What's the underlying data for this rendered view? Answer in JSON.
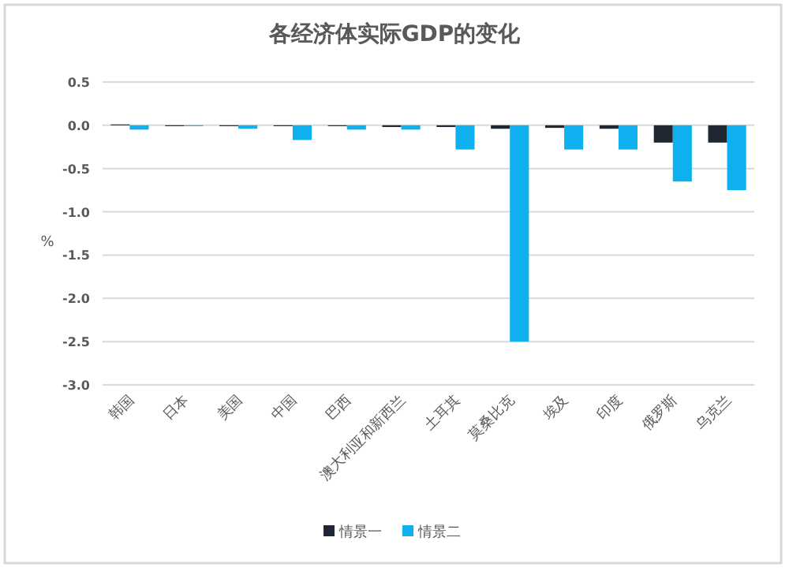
{
  "chart_data": {
    "type": "bar",
    "title": "各经济体实际GDP的变化",
    "ylabel": "%",
    "categories": [
      "韩国",
      "日本",
      "美国",
      "中国",
      "巴西",
      "澳大利亚和新西兰",
      "土耳其",
      "莫桑比克",
      "埃及",
      "印度",
      "俄罗斯",
      "乌克兰"
    ],
    "series": [
      {
        "name": "情景一",
        "color": "#1f2733",
        "values": [
          0.01,
          -0.01,
          -0.01,
          -0.01,
          -0.01,
          -0.02,
          -0.02,
          -0.04,
          -0.03,
          -0.04,
          -0.2,
          -0.2
        ]
      },
      {
        "name": "情景二",
        "color": "#0eb0ef",
        "values": [
          -0.05,
          -0.01,
          -0.04,
          -0.17,
          -0.05,
          -0.05,
          -0.28,
          -2.5,
          -0.28,
          -0.28,
          -0.65,
          -0.75
        ]
      }
    ],
    "ylim": [
      -3.0,
      0.5
    ],
    "yticks": [
      {
        "value": 0.5,
        "label": "0.5"
      },
      {
        "value": 0.0,
        "label": "0.0"
      },
      {
        "value": -0.5,
        "label": "-0.5"
      },
      {
        "value": -1.0,
        "label": "-1.0"
      },
      {
        "value": -1.5,
        "label": "-1.5"
      },
      {
        "value": -2.0,
        "label": "-2.0"
      },
      {
        "value": -2.5,
        "label": "-2.5"
      },
      {
        "value": -3.0,
        "label": "-3.0"
      }
    ],
    "grid": "y",
    "legend": "bottom"
  }
}
